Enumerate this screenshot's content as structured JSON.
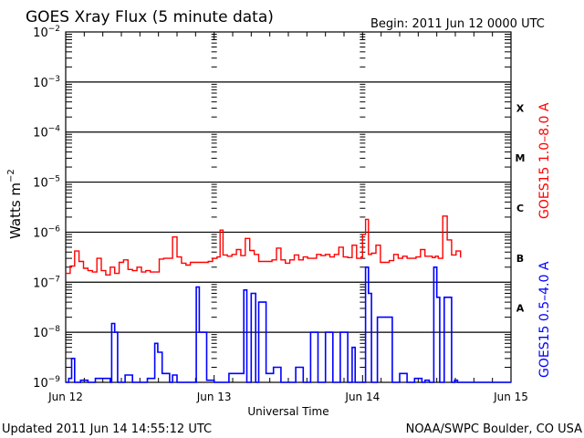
{
  "header": {
    "title": "GOES Xray Flux (5 minute data)",
    "begin": "Begin:  2011 Jun 12 0000 UTC"
  },
  "footer": {
    "updated": "Updated 2011 Jun 14 14:55:12 UTC",
    "credit": "NOAA/SWPC Boulder, CO USA"
  },
  "colors": {
    "long_channel": "#ff0000",
    "short_channel": "#0000ff",
    "axes": "#000000",
    "background": "#ffffff"
  },
  "chart_data": {
    "type": "line",
    "title": "GOES Xray Flux (5 minute data)",
    "subtitle": "Begin:  2011 Jun 12 0000 UTC",
    "xlabel": "Universal Time",
    "ylabel": "Watts m-2",
    "yscale": "log",
    "ylim": [
      1e-09,
      0.01
    ],
    "y_ticks": [
      "10^-2",
      "10^-3",
      "10^-4",
      "10^-5",
      "10^-6",
      "10^-7",
      "10^-8",
      "10^-9"
    ],
    "x_ticks": [
      "Jun 12",
      "Jun 13",
      "Jun 14",
      "Jun 15"
    ],
    "xlim_days": [
      0,
      3
    ],
    "grid": "horizontal lines at each decade",
    "flare_classes": [
      {
        "label": "X",
        "level": 0.0001
      },
      {
        "label": "M",
        "level": 1e-05
      },
      {
        "label": "C",
        "level": 1e-06
      },
      {
        "label": "B",
        "level": 1e-07
      },
      {
        "label": "A",
        "level": 1e-08
      }
    ],
    "legend_position": "right, vertical",
    "series": [
      {
        "name": "GOES15 1.0-8.0 A",
        "color": "#ff0000",
        "x_days": [
          0.0,
          0.03,
          0.06,
          0.09,
          0.12,
          0.15,
          0.18,
          0.21,
          0.24,
          0.27,
          0.3,
          0.33,
          0.36,
          0.39,
          0.42,
          0.45,
          0.48,
          0.51,
          0.54,
          0.57,
          0.6,
          0.63,
          0.66,
          0.69,
          0.72,
          0.75,
          0.78,
          0.81,
          0.84,
          0.87,
          0.9,
          0.93,
          0.96,
          0.99,
          1.0,
          1.02,
          1.04,
          1.06,
          1.09,
          1.12,
          1.15,
          1.18,
          1.21,
          1.24,
          1.27,
          1.3,
          1.33,
          1.36,
          1.39,
          1.42,
          1.45,
          1.48,
          1.51,
          1.54,
          1.57,
          1.6,
          1.63,
          1.66,
          1.69,
          1.72,
          1.75,
          1.78,
          1.81,
          1.84,
          1.87,
          1.9,
          1.93,
          1.96,
          1.99,
          2.0,
          2.02,
          2.04,
          2.06,
          2.09,
          2.12,
          2.15,
          2.18,
          2.21,
          2.24,
          2.27,
          2.3,
          2.33,
          2.36,
          2.39,
          2.42,
          2.45,
          2.47,
          2.49,
          2.51,
          2.54,
          2.57,
          2.6,
          2.63,
          2.66
        ],
        "values": [
          1.5e-07,
          2.1e-07,
          4.2e-07,
          2.6e-07,
          1.9e-07,
          1.7e-07,
          1.6e-07,
          3e-07,
          1.7e-07,
          1.4e-07,
          2e-07,
          1.5e-07,
          2.5e-07,
          2.8e-07,
          1.8e-07,
          1.7e-07,
          2e-07,
          1.6e-07,
          1.7e-07,
          1.6e-07,
          1.6e-07,
          2.9e-07,
          3e-07,
          3e-07,
          8e-07,
          3.2e-07,
          2.4e-07,
          2.2e-07,
          2.5e-07,
          2.5e-07,
          2.5e-07,
          2.5e-07,
          2.6e-07,
          3e-07,
          3e-07,
          3.2e-07,
          1.1e-06,
          3.5e-07,
          3.3e-07,
          3.6e-07,
          4.5e-07,
          3.4e-07,
          7.5e-07,
          4.3e-07,
          3.6e-07,
          2.6e-07,
          2.6e-07,
          2.6e-07,
          2.8e-07,
          4.8e-07,
          2.8e-07,
          2.4e-07,
          2.8e-07,
          3.5e-07,
          2.8e-07,
          3.2e-07,
          3e-07,
          3e-07,
          3.6e-07,
          3.4e-07,
          3.6e-07,
          3.2e-07,
          3.6e-07,
          5e-07,
          3.2e-07,
          3.1e-07,
          5.5e-07,
          3e-07,
          3.2e-07,
          9e-07,
          1.8e-06,
          3.6e-07,
          3.8e-07,
          5.5e-07,
          2.5e-07,
          2.5e-07,
          2.7e-07,
          3.6e-07,
          3e-07,
          3.3e-07,
          3e-07,
          3e-07,
          3.2e-07,
          4.5e-07,
          3.3e-07,
          3.3e-07,
          3.1e-07,
          3.3e-07,
          3e-07,
          2.1e-06,
          7e-07,
          3.5e-07,
          4.2e-07,
          3.1e-07,
          3.1e-07,
          3e-07
        ]
      },
      {
        "name": "GOES15 0.5-4.0 A",
        "color": "#0000ff",
        "x_days": [
          0.0,
          0.02,
          0.04,
          0.06,
          0.08,
          0.1,
          0.15,
          0.2,
          0.3,
          0.31,
          0.33,
          0.35,
          0.4,
          0.45,
          0.55,
          0.6,
          0.62,
          0.65,
          0.7,
          0.72,
          0.75,
          0.85,
          0.88,
          0.9,
          0.95,
          1.0,
          1.1,
          1.2,
          1.22,
          1.25,
          1.28,
          1.3,
          1.35,
          1.4,
          1.45,
          1.5,
          1.55,
          1.6,
          1.65,
          1.7,
          1.75,
          1.8,
          1.85,
          1.9,
          1.93,
          1.95,
          2.0,
          2.02,
          2.04,
          2.06,
          2.1,
          2.2,
          2.25,
          2.3,
          2.35,
          2.4,
          2.42,
          2.45,
          2.48,
          2.5,
          2.52,
          2.55,
          2.6,
          2.62,
          2.64,
          2.7,
          2.8,
          3.0
        ],
        "values": [
          1e-09,
          1.2e-09,
          3e-09,
          1e-09,
          1e-09,
          1.1e-09,
          1e-09,
          1.2e-09,
          1e-09,
          1.5e-08,
          1e-08,
          1e-09,
          1.4e-09,
          1e-09,
          1.2e-09,
          6e-09,
          4e-09,
          1.5e-09,
          1e-09,
          1.4e-09,
          1e-09,
          1e-09,
          8e-08,
          1e-08,
          1.1e-09,
          1e-09,
          1.5e-09,
          7e-08,
          1e-09,
          6e-08,
          1e-09,
          4e-08,
          1.5e-09,
          2e-09,
          1e-09,
          1e-09,
          2e-09,
          1e-09,
          1e-08,
          1e-09,
          1e-08,
          1e-09,
          1e-08,
          1e-09,
          5e-09,
          1e-09,
          1e-09,
          2e-07,
          6e-08,
          1e-09,
          2e-08,
          1e-09,
          1.5e-09,
          1e-09,
          1.2e-09,
          1e-09,
          1.1e-09,
          1e-09,
          2e-07,
          5e-08,
          1e-09,
          5e-08,
          1e-09,
          1.1e-09,
          1e-09,
          1e-09,
          1e-09,
          1e-09
        ]
      }
    ]
  },
  "right_axis_labels": [
    "X",
    "M",
    "C",
    "B",
    "A"
  ],
  "legend": {
    "long": "GOES15 1.0–8.0 A",
    "short": "GOES15 0.5–4.0 A"
  }
}
